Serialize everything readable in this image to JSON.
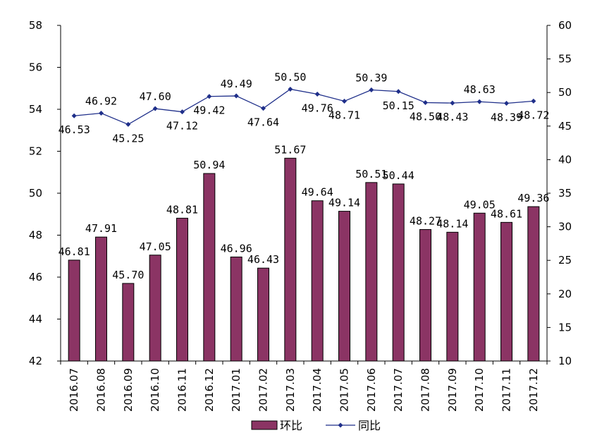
{
  "chart_data": {
    "type": "bar+line",
    "categories": [
      "2016.07",
      "2016.08",
      "2016.09",
      "2016.10",
      "2016.11",
      "2016.12",
      "2017.01",
      "2017.02",
      "2017.03",
      "2017.04",
      "2017.05",
      "2017.06",
      "2017.07",
      "2017.08",
      "2017.09",
      "2017.10",
      "2017.11",
      "2017.12"
    ],
    "series": [
      {
        "name": "环比",
        "type": "bar",
        "axis": "left",
        "color": "#8B3464",
        "values": [
          46.81,
          47.91,
          45.7,
          47.05,
          48.81,
          50.94,
          46.96,
          46.43,
          51.67,
          49.64,
          49.14,
          50.51,
          50.44,
          48.27,
          48.14,
          49.05,
          48.61,
          49.36
        ],
        "labels": [
          "46.81",
          "47.91",
          "45.70",
          "47.05",
          "48.81",
          "50.94",
          "46.96",
          "46.43",
          "51.67",
          "49.64",
          "49.14",
          "50.51",
          "50.44",
          "48.27",
          "48.14",
          "49.05",
          "48.61",
          "49.36"
        ]
      },
      {
        "name": "同比",
        "type": "line",
        "axis": "right",
        "color": "#1F2F8A",
        "marker": "diamond",
        "values": [
          46.53,
          46.92,
          45.25,
          47.6,
          47.12,
          49.42,
          49.49,
          47.64,
          50.5,
          49.76,
          48.71,
          50.39,
          50.15,
          48.5,
          48.43,
          48.63,
          48.39,
          48.72
        ],
        "labels": [
          "46.53",
          "46.92",
          "45.25",
          "47.60",
          "47.12",
          "49.42",
          "49.49",
          "47.64",
          "50.50",
          "49.76",
          "48.71",
          "50.39",
          "50.15",
          "48.50",
          "48.43",
          "48.63",
          "48.39",
          "48.72"
        ]
      }
    ],
    "y_left": {
      "min": 42,
      "max": 58,
      "ticks": [
        42,
        44,
        46,
        48,
        50,
        52,
        54,
        56,
        58
      ]
    },
    "y_right": {
      "min": 10,
      "max": 60,
      "ticks": [
        10,
        15,
        20,
        25,
        30,
        35,
        40,
        45,
        50,
        55,
        60
      ]
    },
    "grid": false,
    "legend": "bottom"
  }
}
